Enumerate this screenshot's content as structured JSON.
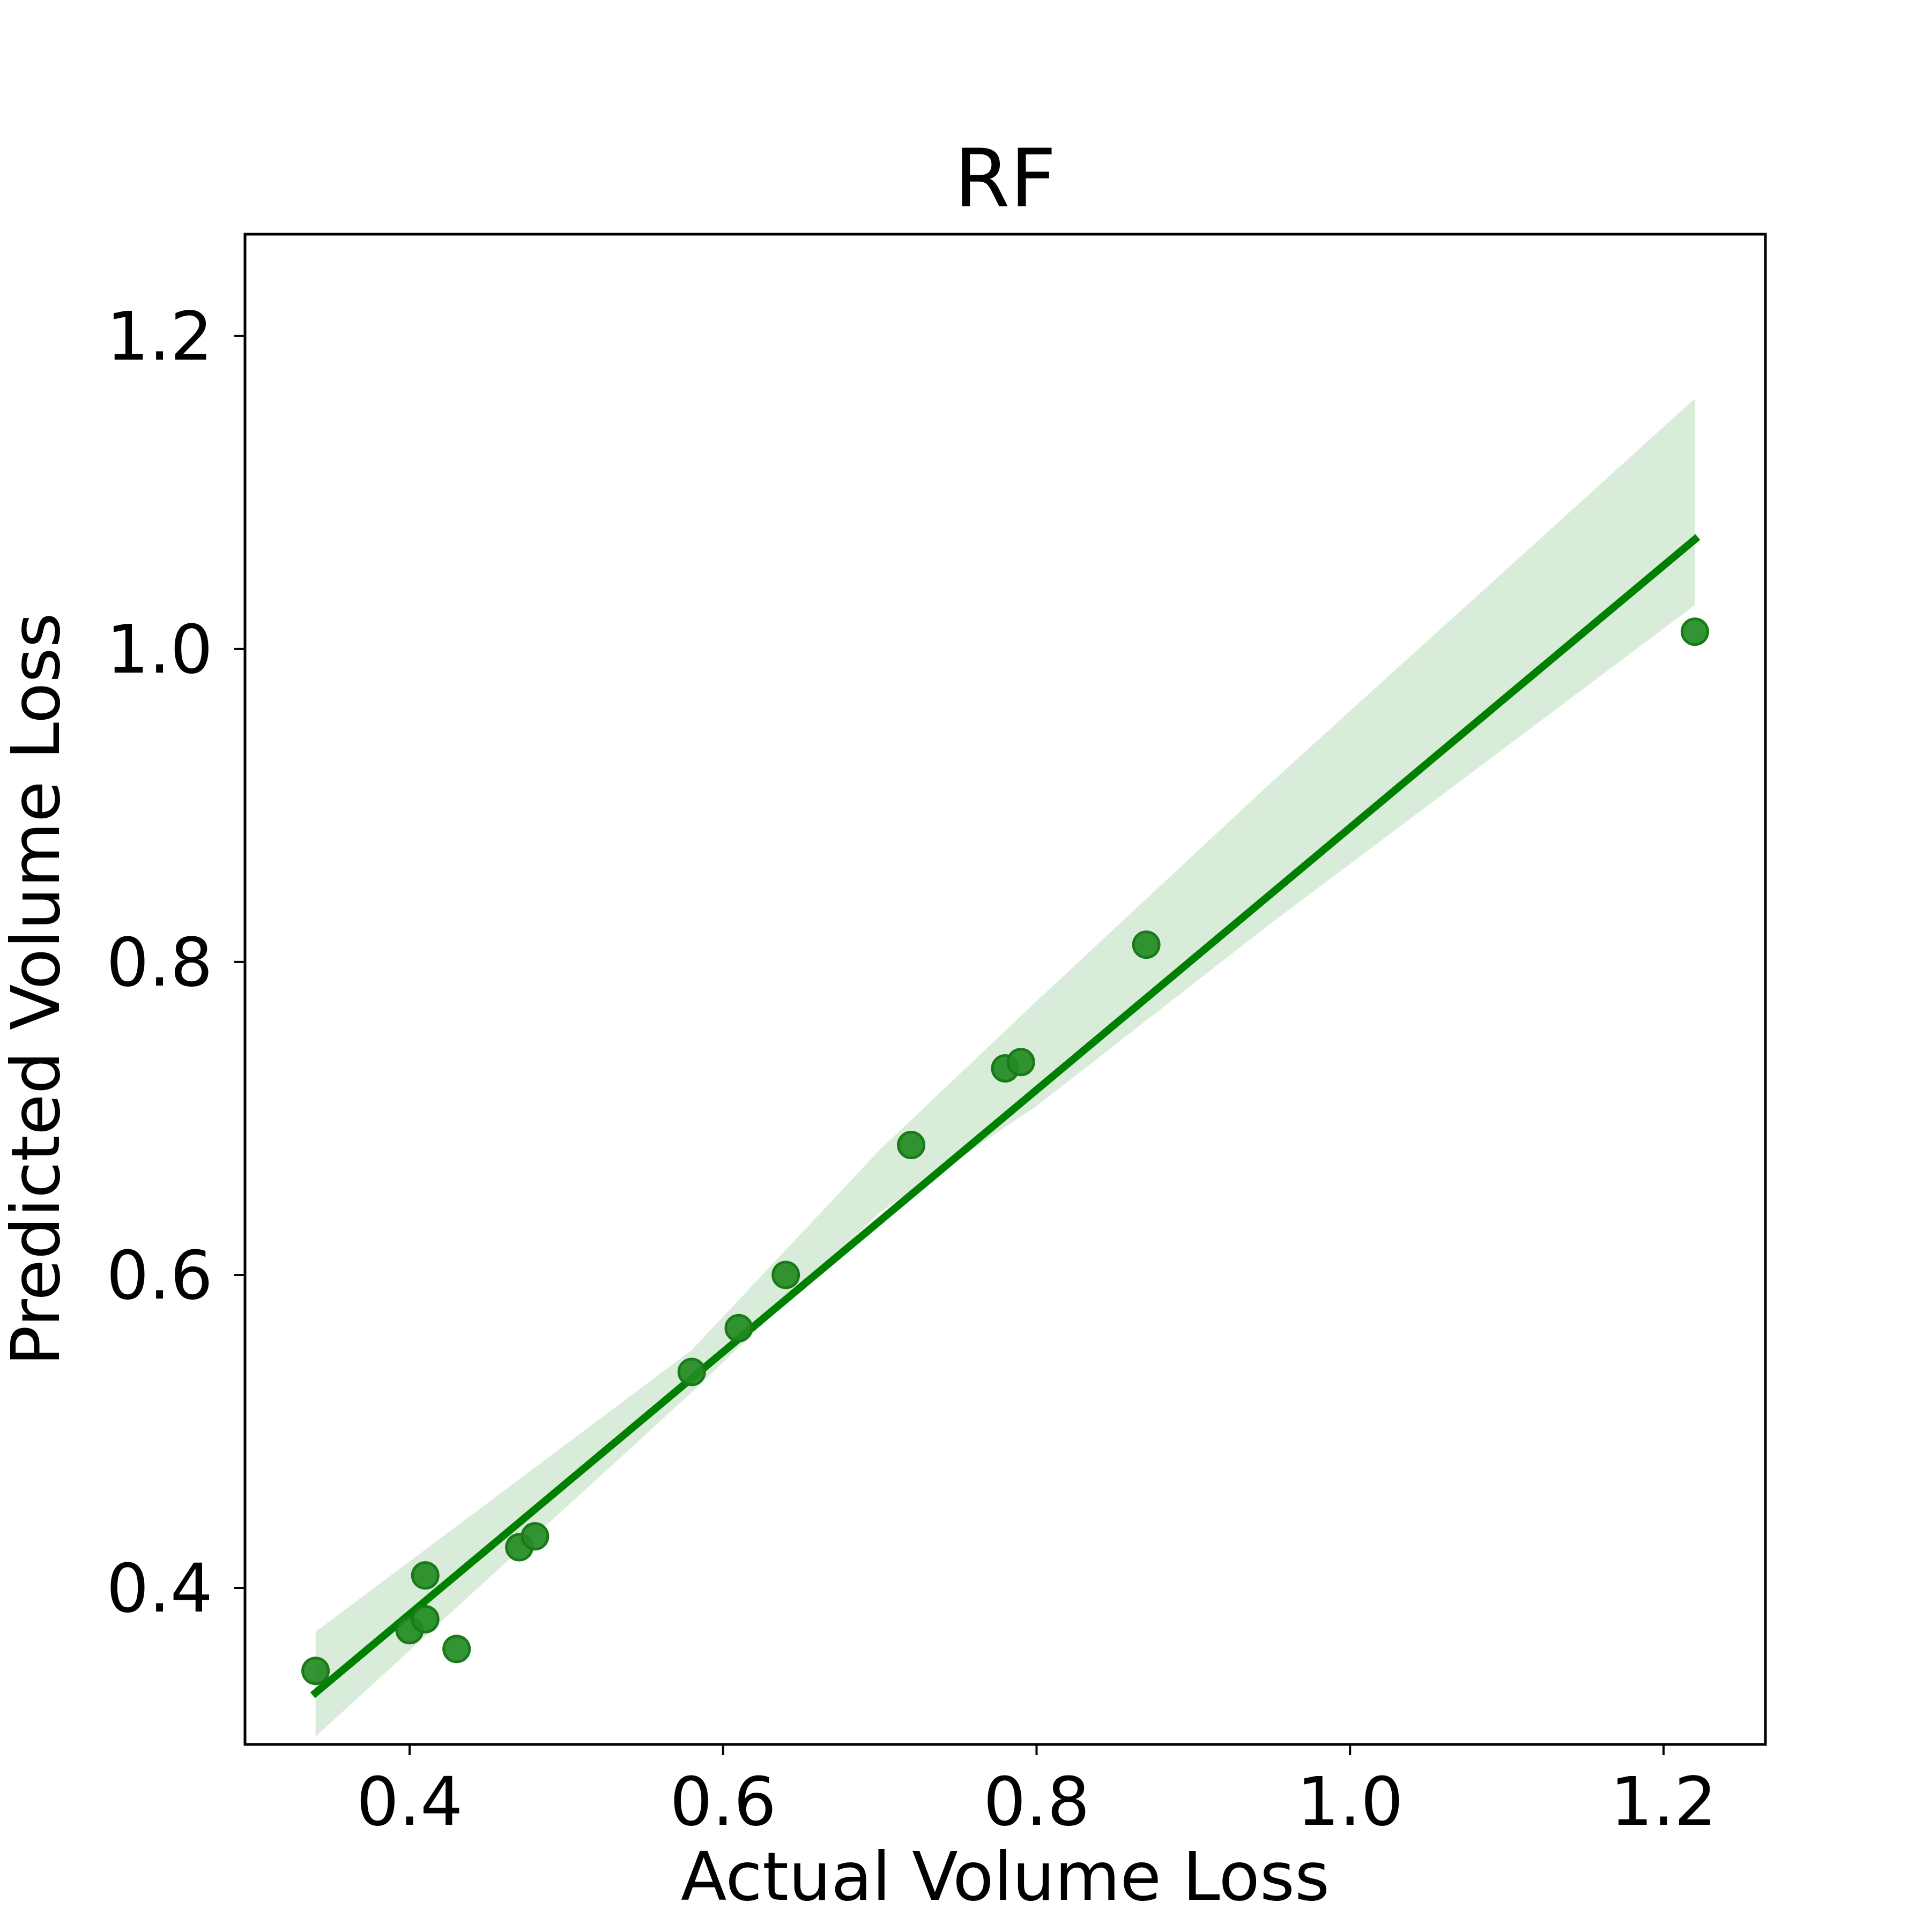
{
  "chart_data": {
    "type": "scatter",
    "title": "RF",
    "xlabel": "Actual Volume Loss",
    "ylabel": "Predicted Volume Loss",
    "xlim": [
      0.295,
      1.265
    ],
    "ylim": [
      0.3,
      1.265
    ],
    "xticks": [
      0.4,
      0.6,
      0.8,
      1.0,
      1.2
    ],
    "yticks": [
      0.4,
      0.6,
      0.8,
      1.0,
      1.2
    ],
    "xtick_labels": [
      "0.4",
      "0.6",
      "0.8",
      "1.0",
      "1.2"
    ],
    "ytick_labels": [
      "0.4",
      "0.6",
      "0.8",
      "1.0",
      "1.2"
    ],
    "grid": false,
    "colors": {
      "points": "#228B22",
      "point_edge": "#1a7a1a",
      "regression_line": "#008000",
      "confidence_band": "#d9ecd9"
    },
    "points": {
      "x": [
        0.34,
        0.4,
        0.41,
        0.41,
        0.43,
        0.47,
        0.48,
        0.58,
        0.61,
        0.64,
        0.72,
        0.78,
        0.79,
        0.87,
        1.22
      ],
      "y": [
        0.347,
        0.373,
        0.38,
        0.408,
        0.361,
        0.426,
        0.433,
        0.538,
        0.566,
        0.6,
        0.683,
        0.732,
        0.736,
        0.811,
        1.011
      ]
    },
    "regression_line": {
      "x": [
        0.34,
        1.22
      ],
      "y": [
        0.333,
        1.07
      ]
    },
    "confidence_band": {
      "x": [
        0.34,
        0.58,
        0.7,
        0.8,
        0.95,
        1.22
      ],
      "upper": [
        0.372,
        0.552,
        0.68,
        0.775,
        0.915,
        1.16
      ],
      "lower": [
        0.305,
        0.525,
        0.64,
        0.708,
        0.825,
        1.028
      ]
    }
  }
}
